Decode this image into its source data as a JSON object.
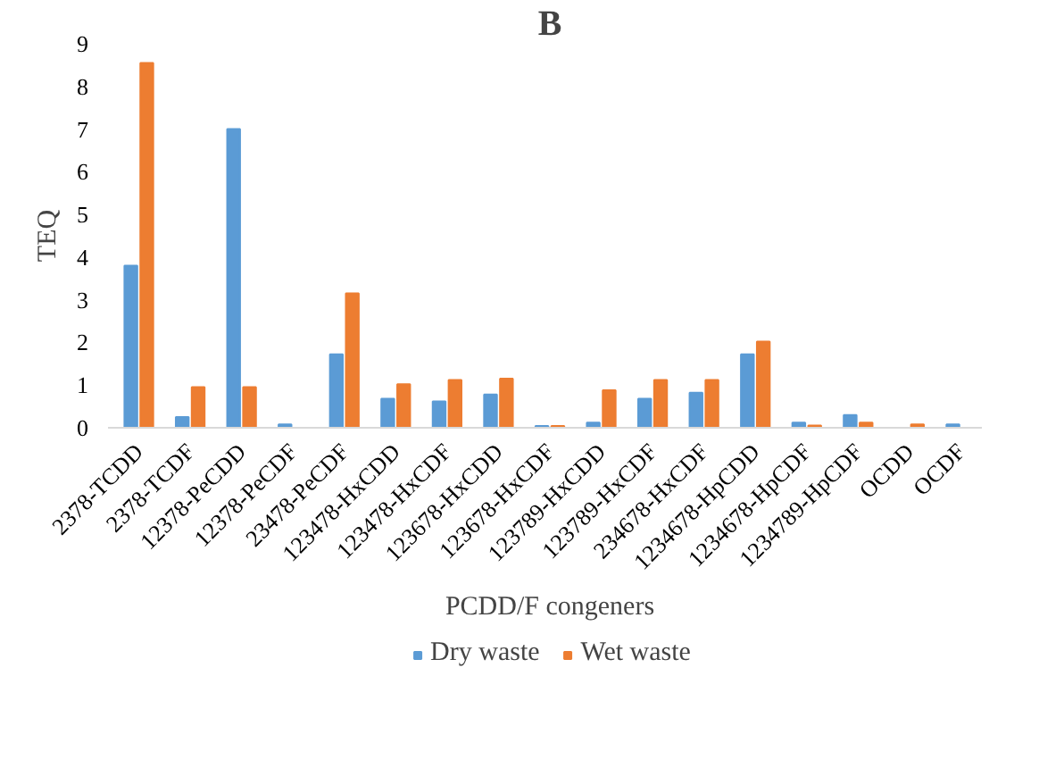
{
  "chart_data": {
    "type": "bar",
    "title": "B",
    "xlabel": "PCDD/F congeners",
    "ylabel": "TEQ",
    "categories": [
      "2378-TCDD",
      "2378-TCDF",
      "12378-PeCDD",
      "12378-PeCDF",
      "23478-PeCDF",
      "123478-HxCDD",
      "123478-HxCDF",
      "123678-HxCDD",
      "123678-HxCDF",
      "123789-HxCDD",
      "123789-HxCDF",
      "234678-HxCDF",
      "1234678-HpCDD",
      "1234678-HpCDF",
      "1234789-HpCDF",
      "OCDD",
      "OCDF"
    ],
    "series": [
      {
        "name": "Dry waste",
        "color": "#5b9bd5",
        "values": [
          3.8,
          0.25,
          7.0,
          0.08,
          1.72,
          0.68,
          0.62,
          0.78,
          0.04,
          0.12,
          0.68,
          0.82,
          1.72,
          0.12,
          0.3,
          null,
          0.08
        ]
      },
      {
        "name": "Wet waste",
        "color": "#ed7d31",
        "values": [
          8.55,
          0.95,
          0.95,
          null,
          3.15,
          1.02,
          1.12,
          1.15,
          0.04,
          0.88,
          1.12,
          1.12,
          2.02,
          0.05,
          0.12,
          0.08,
          null
        ]
      }
    ],
    "ylim": [
      0,
      9
    ],
    "yticks": [
      0,
      1,
      2,
      3,
      4,
      5,
      6,
      7,
      8,
      9
    ],
    "grid": false,
    "legend": "bottom"
  }
}
